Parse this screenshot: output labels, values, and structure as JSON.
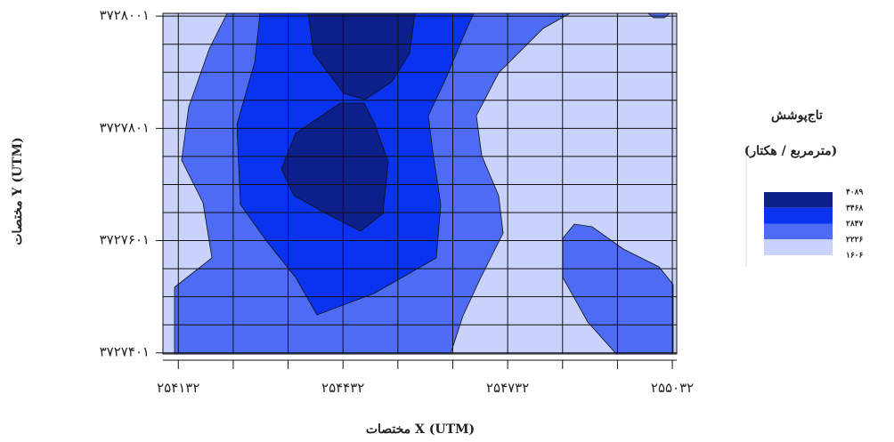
{
  "chart_data": {
    "type": "contour",
    "x_label": "مختصات X (UTM)",
    "y_label": "مختصات Y (UTM)",
    "xlim": [
      254104,
      255040
    ],
    "ylim": [
      3727399,
      3728006
    ],
    "xticks": [
      {
        "value": 254132,
        "label": "۲۵۴۱۳۲"
      },
      {
        "value": 254232,
        "label": null
      },
      {
        "value": 254332,
        "label": null
      },
      {
        "value": 254432,
        "label": "۲۵۴۴۳۲"
      },
      {
        "value": 254532,
        "label": null
      },
      {
        "value": 254632,
        "label": null
      },
      {
        "value": 254732,
        "label": "۲۵۴۷۳۲"
      },
      {
        "value": 254832,
        "label": null
      },
      {
        "value": 254932,
        "label": null
      },
      {
        "value": 255032,
        "label": "۲۵۵۰۳۲"
      }
    ],
    "yticks": [
      {
        "value": 3727401,
        "label": "۳۷۲۷۴۰۱"
      },
      {
        "value": 3727451,
        "label": null
      },
      {
        "value": 3727501,
        "label": null
      },
      {
        "value": 3727551,
        "label": null
      },
      {
        "value": 3727601,
        "label": "۳۷۲۷۶۰۱"
      },
      {
        "value": 3727651,
        "label": null
      },
      {
        "value": 3727701,
        "label": null
      },
      {
        "value": 3727751,
        "label": null
      },
      {
        "value": 3727801,
        "label": "۳۷۲۷۸۰۱"
      },
      {
        "value": 3727851,
        "label": null
      },
      {
        "value": 3727901,
        "label": null
      },
      {
        "value": 3727951,
        "label": null
      },
      {
        "value": 3728001,
        "label": "۳۷۲۸۰۰۱"
      }
    ],
    "grid": true,
    "legend": {
      "title": "تاج‌پوشش",
      "subtitle": "(مترمربع / هکتار)",
      "levels": [
        {
          "value": 4089,
          "label": "۴۰۸۹"
        },
        {
          "value": 3468,
          "label": "۳۴۶۸"
        },
        {
          "value": 2847,
          "label": "۲۸۴۷"
        },
        {
          "value": 2226,
          "label": "۲۲۲۶"
        },
        {
          "value": 1606,
          "label": "۱۶۰۶"
        }
      ]
    },
    "colors": [
      "#0c1f8a",
      "#0a33ef",
      "#4d6cf3",
      "#c9d2fa"
    ]
  }
}
